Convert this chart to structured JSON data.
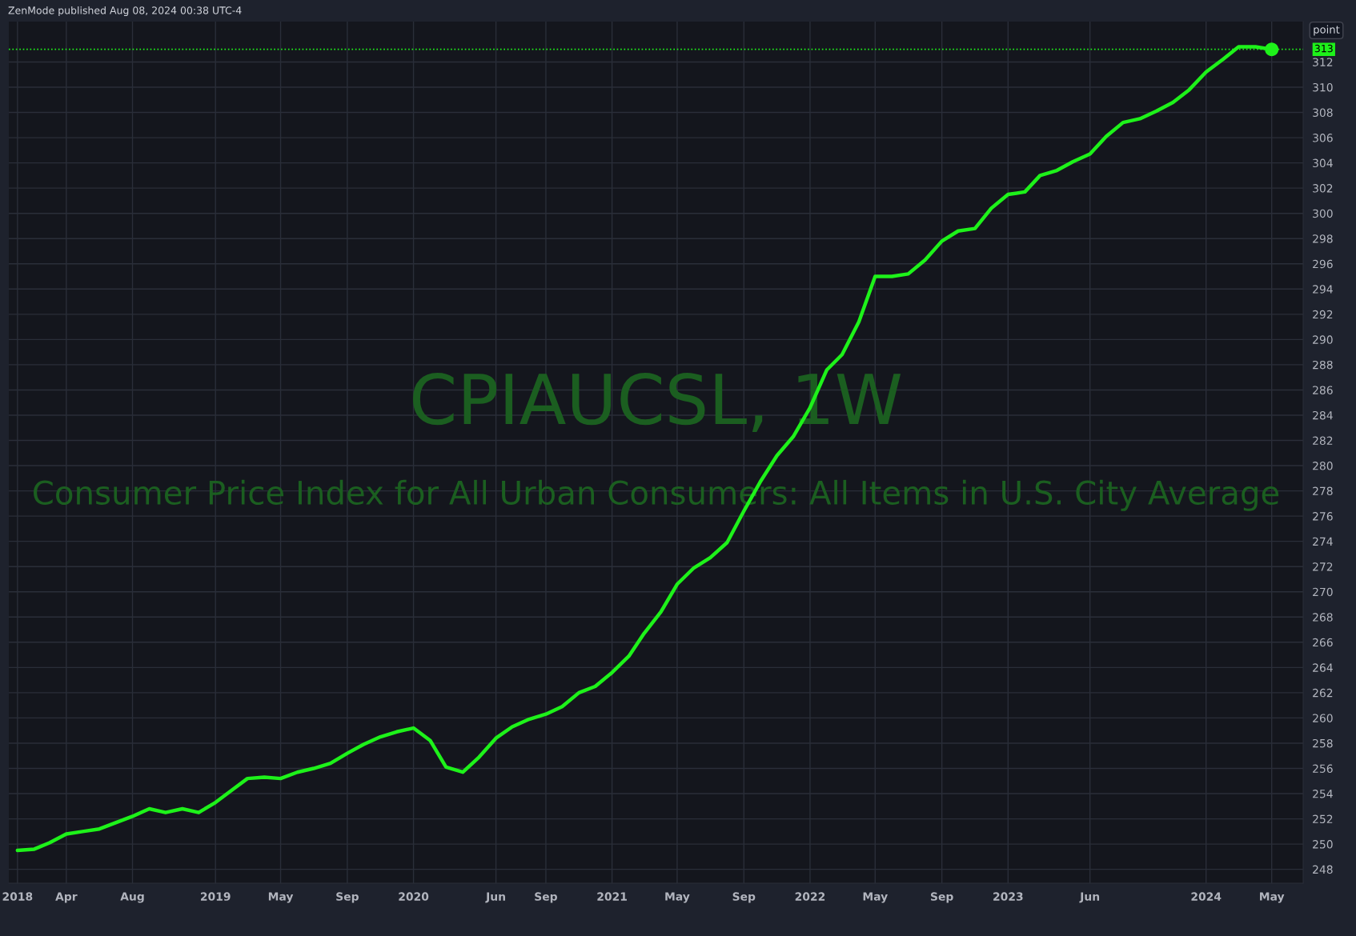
{
  "chart_data": {
    "type": "line",
    "title": "CPIAUCSL, 1W",
    "subtitle": "Consumer Price Index for All Urban Consumers: All Items in U.S. City Average",
    "annotations": [
      "ZenMode published Aug 08, 2024 00:38 UTC-4",
      "point"
    ],
    "x": [
      "2018-01",
      "2018-02",
      "2018-03",
      "2018-04",
      "2018-05",
      "2018-06",
      "2018-07",
      "2018-08",
      "2018-09",
      "2018-10",
      "2018-11",
      "2018-12",
      "2019-01",
      "2019-02",
      "2019-03",
      "2019-04",
      "2019-05",
      "2019-06",
      "2019-07",
      "2019-08",
      "2019-09",
      "2019-10",
      "2019-11",
      "2019-12",
      "2020-01",
      "2020-02",
      "2020-03",
      "2020-04",
      "2020-05",
      "2020-06",
      "2020-07",
      "2020-08",
      "2020-09",
      "2020-10",
      "2020-11",
      "2020-12",
      "2021-01",
      "2021-02",
      "2021-03",
      "2021-04",
      "2021-05",
      "2021-06",
      "2021-07",
      "2021-08",
      "2021-09",
      "2021-10",
      "2021-11",
      "2021-12",
      "2022-01",
      "2022-02",
      "2022-03",
      "2022-04",
      "2022-05",
      "2022-06",
      "2022-07",
      "2022-08",
      "2022-09",
      "2022-10",
      "2022-11",
      "2022-12",
      "2023-01",
      "2023-02",
      "2023-03",
      "2023-04",
      "2023-05",
      "2023-06",
      "2023-07",
      "2023-08",
      "2023-09",
      "2023-10",
      "2023-11",
      "2023-12",
      "2024-01",
      "2024-02",
      "2024-03",
      "2024-04",
      "2024-05"
    ],
    "series": [
      {
        "color": "#1ef21a",
        "values": [
          249.5,
          249.6,
          250.1,
          250.8,
          251.0,
          251.2,
          251.7,
          252.2,
          252.8,
          252.5,
          252.8,
          252.5,
          253.3,
          254.3,
          255.2,
          255.3,
          255.2,
          255.7,
          256.0,
          256.4,
          257.2,
          257.9,
          258.5,
          258.9,
          259.2,
          258.2,
          256.1,
          255.7,
          256.9,
          258.4,
          259.3,
          259.9,
          260.3,
          260.9,
          262.0,
          262.5,
          263.6,
          264.9,
          266.7,
          268.4,
          270.6,
          271.9,
          272.7,
          273.9,
          276.4,
          278.7,
          280.8,
          282.3,
          284.6,
          287.6,
          288.8,
          291.4,
          295.0,
          295.0,
          295.2,
          296.3,
          297.8,
          298.6,
          298.8,
          300.4,
          301.5,
          301.7,
          303.0,
          303.4,
          304.1,
          304.7,
          306.1,
          307.2,
          307.5,
          308.1,
          308.8,
          309.8,
          311.2,
          312.2,
          313.2,
          313.2,
          313.0
        ]
      },
      {
        "type": "scatter",
        "marker": "circle",
        "color": "#1ef21a",
        "x": [
          "2024-05"
        ],
        "values": [
          313.0
        ]
      }
    ],
    "xlim": [
      "2017-12-16",
      "2024-06-28"
    ],
    "xticks": [
      {
        "value": "2018-01",
        "label": "2018"
      },
      {
        "value": "2018-04",
        "label": "Apr"
      },
      {
        "value": "2018-08",
        "label": "Aug"
      },
      {
        "value": "2019-01",
        "label": "2019"
      },
      {
        "value": "2019-05",
        "label": "May"
      },
      {
        "value": "2019-09",
        "label": "Sep"
      },
      {
        "value": "2020-01",
        "label": "2020"
      },
      {
        "value": "2020-06",
        "label": "Jun"
      },
      {
        "value": "2020-09",
        "label": "Sep"
      },
      {
        "value": "2021-01",
        "label": "2021"
      },
      {
        "value": "2021-05",
        "label": "May"
      },
      {
        "value": "2021-09",
        "label": "Sep"
      },
      {
        "value": "2022-01",
        "label": "2022"
      },
      {
        "value": "2022-05",
        "label": "May"
      },
      {
        "value": "2022-09",
        "label": "Sep"
      },
      {
        "value": "2023-01",
        "label": "2023"
      },
      {
        "value": "2023-06",
        "label": "Jun"
      },
      {
        "value": "2024-01",
        "label": "2024"
      },
      {
        "value": "2024-05",
        "label": "May"
      }
    ],
    "ylim": [
      246.9,
      315.2
    ],
    "yticks": [
      248,
      250,
      252,
      254,
      256,
      258,
      260,
      262,
      264,
      266,
      268,
      270,
      272,
      274,
      276,
      278,
      280,
      282,
      284,
      286,
      288,
      290,
      292,
      294,
      296,
      298,
      300,
      302,
      304,
      306,
      308,
      310,
      312
    ],
    "ref_lines": [
      {
        "axis": "y",
        "value": 313,
        "label": "313",
        "color": "#1ef21a",
        "line_style": "dotted"
      }
    ],
    "grid": true,
    "marker": "none",
    "line_style": "solid"
  }
}
